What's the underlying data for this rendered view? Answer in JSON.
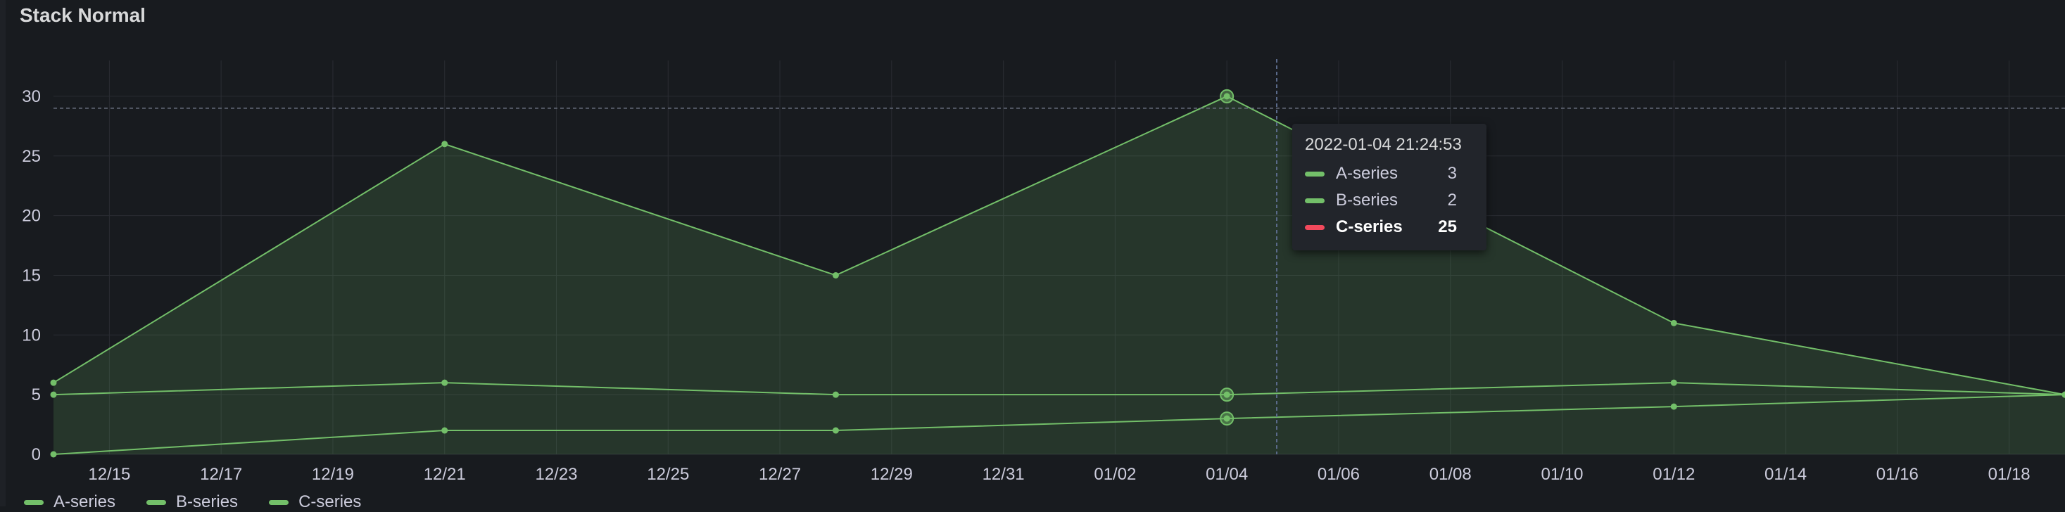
{
  "panel": {
    "title": "Stack Normal"
  },
  "chart_data": {
    "type": "area",
    "stacking": "normal",
    "x": [
      "2021-12-14",
      "2021-12-21",
      "2021-12-28",
      "2022-01-04",
      "2022-01-12",
      "2022-01-19"
    ],
    "series": [
      {
        "name": "A-series",
        "values": [
          0,
          2,
          2,
          3,
          4,
          5
        ]
      },
      {
        "name": "B-series",
        "values": [
          5,
          4,
          3,
          2,
          2,
          0
        ]
      },
      {
        "name": "C-series",
        "values": [
          1,
          20,
          10,
          25,
          5,
          0
        ]
      }
    ],
    "stacked_totals": [
      [
        0,
        2,
        2,
        3,
        4,
        5
      ],
      [
        5,
        6,
        5,
        5,
        6,
        5
      ],
      [
        6,
        26,
        15,
        30,
        11,
        5
      ]
    ],
    "x_ticks": [
      "12/15",
      "12/17",
      "12/19",
      "12/21",
      "12/23",
      "12/25",
      "12/27",
      "12/29",
      "12/31",
      "01/02",
      "01/04",
      "01/06",
      "01/08",
      "01/10",
      "01/12",
      "01/14",
      "01/16",
      "01/18"
    ],
    "y_ticks": [
      "0",
      "5",
      "10",
      "15",
      "20",
      "25",
      "30"
    ],
    "ylim": [
      0,
      33
    ],
    "grid": true,
    "line_color": "#73bf69",
    "legend_placement": "bottom-left"
  },
  "tooltip": {
    "time": "2022-01-04 21:24:53",
    "rows": [
      {
        "name": "A-series",
        "value": "3",
        "color": "#73bf69",
        "highlight": false
      },
      {
        "name": "B-series",
        "value": "2",
        "color": "#73bf69",
        "highlight": false
      },
      {
        "name": "C-series",
        "value": "25",
        "color": "#f2495c",
        "highlight": true
      }
    ]
  },
  "legend": {
    "items": [
      {
        "label": "A-series",
        "color": "#73bf69"
      },
      {
        "label": "B-series",
        "color": "#73bf69"
      },
      {
        "label": "C-series",
        "color": "#73bf69"
      }
    ]
  }
}
